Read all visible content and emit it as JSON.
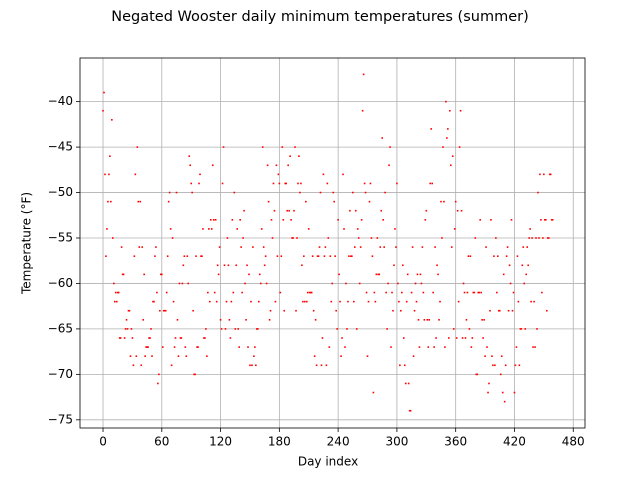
{
  "chart_data": {
    "type": "scatter",
    "title": "Negated Wooster daily minimum temperatures (summer)",
    "xlabel": "Day index",
    "ylabel": "Temperature (°F)",
    "color": "#ff0000",
    "grid": true,
    "xlim": [
      -23.5,
      492
    ],
    "ylim": [
      -75.9,
      -35.2
    ],
    "xticks": [
      0,
      60,
      120,
      180,
      240,
      300,
      360,
      420,
      480
    ],
    "yticks": [
      {
        "value": -75,
        "label": "−75"
      },
      {
        "value": -70,
        "label": "−70"
      },
      {
        "value": -65,
        "label": "−65"
      },
      {
        "value": -60,
        "label": "−60"
      },
      {
        "value": -55,
        "label": "−55"
      },
      {
        "value": -50,
        "label": "−50"
      },
      {
        "value": -45,
        "label": "−45"
      },
      {
        "value": -40,
        "label": "−40"
      }
    ],
    "x": [
      0,
      1,
      2,
      3,
      4,
      5,
      6,
      7,
      8,
      9,
      10,
      11,
      12,
      13,
      14,
      15,
      16,
      17,
      18,
      19,
      20,
      21,
      22,
      23,
      24,
      25,
      26,
      27,
      28,
      29,
      30,
      31,
      32,
      33,
      34,
      35,
      36,
      37,
      38,
      39,
      40,
      41,
      42,
      43,
      44,
      45,
      46,
      47,
      48,
      49,
      50,
      51,
      52,
      53,
      54,
      55,
      56,
      57,
      58,
      59,
      60,
      61,
      62,
      63,
      64,
      65,
      66,
      67,
      68,
      69,
      70,
      71,
      72,
      73,
      74,
      75,
      76,
      77,
      78,
      79,
      80,
      81,
      82,
      83,
      84,
      85,
      86,
      87,
      88,
      89,
      90,
      91,
      92,
      93,
      94,
      95,
      96,
      97,
      98,
      99,
      100,
      101,
      102,
      103,
      104,
      105,
      106,
      107,
      108,
      109,
      110,
      111,
      112,
      113,
      114,
      115,
      116,
      117,
      118,
      119,
      120,
      121,
      122,
      123,
      124,
      125,
      126,
      127,
      128,
      129,
      130,
      131,
      132,
      133,
      134,
      135,
      136,
      137,
      138,
      139,
      140,
      141,
      142,
      143,
      144,
      145,
      146,
      147,
      148,
      149,
      150,
      151,
      152,
      153,
      154,
      155,
      156,
      157,
      158,
      159,
      160,
      161,
      162,
      163,
      164,
      165,
      166,
      167,
      168,
      169,
      170,
      171,
      172,
      173,
      174,
      175,
      176,
      177,
      178,
      179,
      180,
      181,
      182,
      183,
      184,
      185,
      186,
      187,
      188,
      189,
      190,
      191,
      192,
      193,
      194,
      195,
      196,
      197,
      198,
      199,
      200,
      201,
      202,
      203,
      204,
      205,
      206,
      207,
      208,
      209,
      210,
      211,
      212,
      213,
      214,
      215,
      216,
      217,
      218,
      219,
      220,
      221,
      222,
      223,
      224,
      225,
      226,
      227,
      228,
      229,
      230,
      231,
      232,
      233,
      234,
      235,
      236,
      237,
      238,
      239,
      240,
      241,
      242,
      243,
      244,
      245,
      246,
      247,
      248,
      249,
      250,
      251,
      252,
      253,
      254,
      255,
      256,
      257,
      258,
      259,
      260,
      261,
      262,
      263,
      264,
      265,
      266,
      267,
      268,
      269,
      270,
      271,
      272,
      273,
      274,
      275,
      276,
      277,
      278,
      279,
      280,
      281,
      282,
      283,
      284,
      285,
      286,
      287,
      288,
      289,
      290,
      291,
      292,
      293,
      294,
      295,
      296,
      297,
      298,
      299,
      300,
      301,
      302,
      303,
      304,
      305,
      306,
      307,
      308,
      309,
      310,
      311,
      312,
      313,
      314,
      315,
      316,
      317,
      318,
      319,
      320,
      321,
      322,
      323,
      324,
      325,
      326,
      327,
      328,
      329,
      330,
      331,
      332,
      333,
      334,
      335,
      336,
      337,
      338,
      339,
      340,
      341,
      342,
      343,
      344,
      345,
      346,
      347,
      348,
      349,
      350,
      351,
      352,
      353,
      354,
      355,
      356,
      357,
      358,
      359,
      360,
      361,
      362,
      363,
      364,
      365,
      366,
      367,
      368,
      369,
      370,
      371,
      372,
      373,
      374,
      375,
      376,
      377,
      378,
      379,
      380,
      381,
      382,
      383,
      384,
      385,
      386,
      387,
      388,
      389,
      390,
      391,
      392,
      393,
      394,
      395,
      396,
      397,
      398,
      399,
      400,
      401,
      402,
      403,
      404,
      405,
      406,
      407,
      408,
      409,
      410,
      411,
      412,
      413,
      414,
      415,
      416,
      417,
      418,
      419,
      420,
      421,
      422,
      423,
      424,
      425,
      426,
      427,
      428,
      429,
      430,
      431,
      432,
      433,
      434,
      435,
      436,
      437,
      438,
      439,
      440,
      441,
      442,
      443,
      444,
      445,
      446,
      447,
      448,
      449,
      450,
      451,
      452,
      453,
      454,
      455,
      456,
      457,
      458,
      459
    ],
    "values": [
      -41,
      -39,
      -48,
      -57,
      -54,
      -51,
      -48,
      -46,
      -51,
      -42,
      -55,
      -60,
      -62,
      -61,
      -62,
      -61,
      -61,
      -66,
      -66,
      -56,
      -59,
      -59,
      -66,
      -65,
      -64,
      -65,
      -63,
      -63,
      -68,
      -65,
      -66,
      -69,
      -57,
      -48,
      -68,
      -45,
      -51,
      -56,
      -51,
      -69,
      -56,
      -64,
      -59,
      -68,
      -67,
      -67,
      -67,
      -66,
      -66,
      -65,
      -68,
      -62,
      -62,
      -57,
      -56,
      -61,
      -71,
      -70,
      -63,
      -59,
      -59,
      -67,
      -63,
      -63,
      -63,
      -61,
      -57,
      -51,
      -50,
      -54,
      -69,
      -55,
      -62,
      -67,
      -66,
      -50,
      -64,
      -68,
      -60,
      -66,
      -66,
      -60,
      -58,
      -57,
      -67,
      -68,
      -57,
      -60,
      -46,
      -47,
      -49,
      -50,
      -63,
      -70,
      -70,
      -57,
      -67,
      -67,
      -49,
      -48,
      -57,
      -57,
      -54,
      -66,
      -66,
      -65,
      -68,
      -61,
      -54,
      -62,
      -53,
      -54,
      -47,
      -53,
      -61,
      -53,
      -62,
      -58,
      -59,
      -56,
      -64,
      -65,
      -49,
      -45,
      -58,
      -65,
      -62,
      -55,
      -58,
      -64,
      -66,
      -62,
      -53,
      -61,
      -50,
      -65,
      -58,
      -54,
      -65,
      -67,
      -53,
      -56,
      -61,
      -55,
      -52,
      -60,
      -64,
      -58,
      -67,
      -59,
      -69,
      -62,
      -69,
      -56,
      -68,
      -67,
      -69,
      -65,
      -65,
      -62,
      -59,
      -60,
      -54,
      -45,
      -56,
      -58,
      -57,
      -60,
      -47,
      -51,
      -64,
      -63,
      -53,
      -55,
      -49,
      -52,
      -62,
      -47,
      -57,
      -48,
      -49,
      -61,
      -57,
      -45,
      -53,
      -63,
      -49,
      -49,
      -52,
      -47,
      -52,
      -46,
      -53,
      -55,
      -55,
      -52,
      -45,
      -63,
      -55,
      -49,
      -46,
      -50,
      -49,
      -58,
      -62,
      -57,
      -62,
      -51,
      -62,
      -61,
      -54,
      -61,
      -61,
      -61,
      -57,
      -63,
      -68,
      -64,
      -69,
      -57,
      -57,
      -56,
      -50,
      -69,
      -66,
      -48,
      -57,
      -56,
      -69,
      -49,
      -55,
      -67,
      -57,
      -62,
      -60,
      -50,
      -51,
      -57,
      -63,
      -65,
      -53,
      -59,
      -62,
      -68,
      -66,
      -48,
      -54,
      -67,
      -60,
      -65,
      -62,
      -57,
      -52,
      -57,
      -57,
      -50,
      -62,
      -56,
      -52,
      -65,
      -54,
      -55,
      -60,
      -56,
      -53,
      -41,
      -37,
      -49,
      -50,
      -61,
      -68,
      -62,
      -51,
      -49,
      -55,
      -57,
      -72,
      -61,
      -62,
      -59,
      -55,
      -59,
      -59,
      -56,
      -52,
      -44,
      -53,
      -56,
      -50,
      -61,
      -65,
      -60,
      -47,
      -45,
      -67,
      -61,
      -63,
      -58,
      -54,
      -56,
      -49,
      -60,
      -62,
      -69,
      -63,
      -61,
      -58,
      -66,
      -69,
      -71,
      -62,
      -59,
      -71,
      -74,
      -74,
      -61,
      -56,
      -68,
      -63,
      -60,
      -62,
      -59,
      -64,
      -67,
      -59,
      -60,
      -56,
      -61,
      -64,
      -53,
      -52,
      -64,
      -67,
      -64,
      -49,
      -43,
      -49,
      -61,
      -67,
      -56,
      -66,
      -58,
      -59,
      -64,
      -62,
      -51,
      -55,
      -45,
      -51,
      -67,
      -40,
      -44,
      -43,
      -66,
      -41,
      -47,
      -56,
      -46,
      -65,
      -54,
      -51,
      -66,
      -52,
      -62,
      -45,
      -41,
      -52,
      -66,
      -60,
      -61,
      -66,
      -64,
      -61,
      -57,
      -65,
      -57,
      -67,
      -66,
      -61,
      -61,
      -55,
      -70,
      -70,
      -61,
      -61,
      -53,
      -61,
      -64,
      -66,
      -64,
      -68,
      -56,
      -67,
      -72,
      -71,
      -63,
      -53,
      -68,
      -69,
      -57,
      -69,
      -55,
      -61,
      -57,
      -63,
      -63,
      -70,
      -68,
      -72,
      -59,
      -73,
      -69,
      -57,
      -56,
      -63,
      -58,
      -60,
      -53,
      -63,
      -61,
      -72,
      -69,
      -67,
      -57,
      -62,
      -69,
      -65,
      -65,
      -58,
      -56,
      -60,
      -65,
      -59,
      -56,
      -58,
      -55,
      -54,
      -62,
      -55,
      -67,
      -62,
      -67,
      -55,
      -65,
      -50,
      -55,
      -48,
      -53,
      -61,
      -55,
      -48,
      -53,
      -53,
      -63,
      -55,
      -55,
      -48,
      -48,
      -53,
      -53
    ]
  }
}
